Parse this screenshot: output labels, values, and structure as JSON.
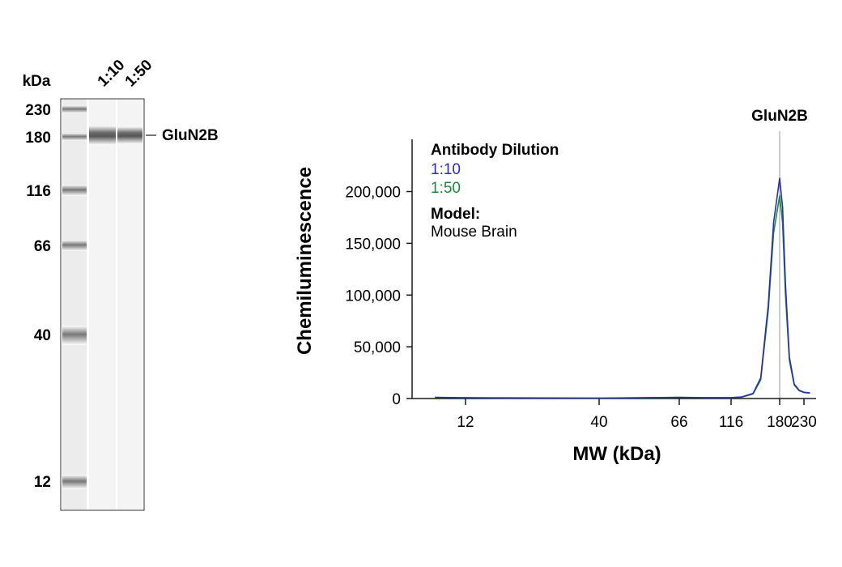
{
  "blot": {
    "unit_label": "kDa",
    "lanes": [
      "1:10",
      "1:50"
    ],
    "ladder_markers": [
      "230",
      "180",
      "116",
      "66",
      "40",
      "12"
    ],
    "band_label": "GluN2B"
  },
  "chart_data": {
    "type": "line",
    "peak_label": "GluN2B",
    "xlabel": "MW (kDa)",
    "ylabel": "Chemiluminescence",
    "x_ticks": [
      "12",
      "40",
      "66",
      "116",
      "180",
      "230"
    ],
    "y_ticks": [
      "0",
      "50,000",
      "100,000",
      "150,000",
      "200,000"
    ],
    "ylim": [
      0,
      250000
    ],
    "legend": {
      "title": "Antibody Dilution",
      "model_title": "Model:",
      "model_value": "Mouse Brain"
    },
    "series": [
      {
        "name": "1:10",
        "color": "#2b2fa8",
        "points": [
          [
            8,
            1200
          ],
          [
            12,
            800
          ],
          [
            20,
            600
          ],
          [
            40,
            400
          ],
          [
            66,
            1200
          ],
          [
            90,
            900
          ],
          [
            116,
            900
          ],
          [
            130,
            1500
          ],
          [
            145,
            5000
          ],
          [
            155,
            20000
          ],
          [
            165,
            90000
          ],
          [
            172,
            170000
          ],
          [
            180,
            213000
          ],
          [
            186,
            185000
          ],
          [
            192,
            110000
          ],
          [
            200,
            40000
          ],
          [
            210,
            14000
          ],
          [
            220,
            8000
          ],
          [
            230,
            6000
          ],
          [
            245,
            5500
          ]
        ]
      },
      {
        "name": "1:50",
        "color": "#1e8a3a",
        "points": [
          [
            8,
            1000
          ],
          [
            12,
            700
          ],
          [
            20,
            500
          ],
          [
            40,
            300
          ],
          [
            66,
            1000
          ],
          [
            90,
            800
          ],
          [
            116,
            800
          ],
          [
            130,
            1300
          ],
          [
            145,
            4500
          ],
          [
            155,
            18000
          ],
          [
            165,
            85000
          ],
          [
            172,
            160000
          ],
          [
            180,
            196000
          ],
          [
            186,
            170000
          ],
          [
            192,
            100000
          ],
          [
            200,
            37000
          ],
          [
            210,
            13000
          ],
          [
            220,
            7500
          ],
          [
            230,
            5800
          ],
          [
            245,
            5200
          ]
        ]
      }
    ],
    "colors": {
      "axis": "#1a1a1a",
      "peak_line": "#999999"
    }
  }
}
